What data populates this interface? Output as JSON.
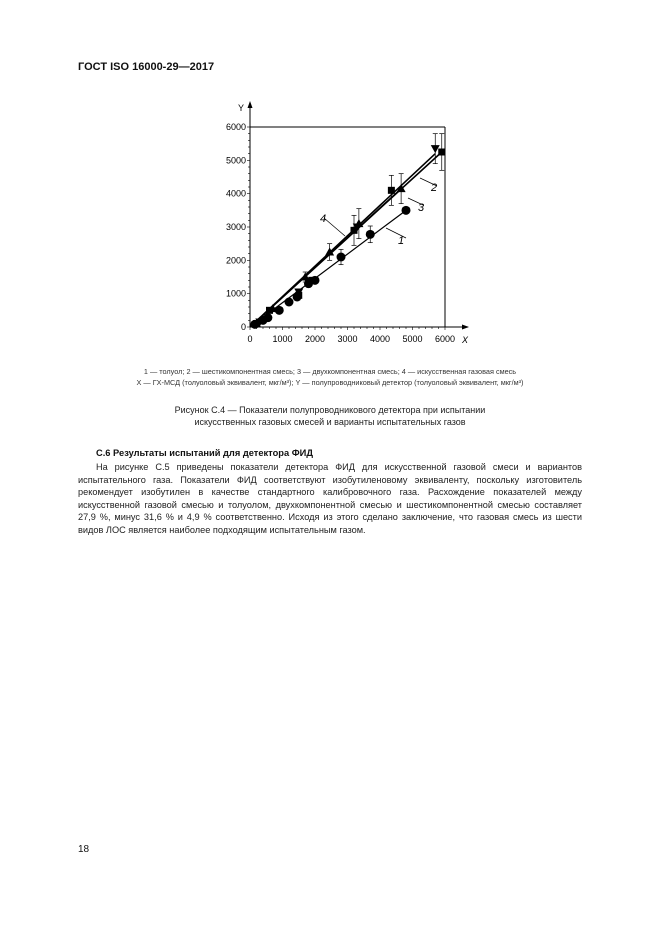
{
  "header": {
    "title": "ГОСТ ISO 16000-29—2017"
  },
  "chart_data": {
    "type": "scatter",
    "xlabel": "X",
    "ylabel": "Y",
    "xlim": [
      0,
      6000
    ],
    "ylim": [
      0,
      6000
    ],
    "xticks": [
      "0",
      "1000",
      "2000",
      "3000",
      "4000",
      "5000",
      "6000"
    ],
    "yticks": [
      "0",
      "1000",
      "2000",
      "3000",
      "4000",
      "5000",
      "6000"
    ],
    "grid": false,
    "series": [
      {
        "name": "1",
        "marker": "circle",
        "points": [
          [
            150,
            80
          ],
          [
            400,
            200
          ],
          [
            550,
            280
          ],
          [
            900,
            500
          ],
          [
            1200,
            750
          ],
          [
            1450,
            900
          ],
          [
            1800,
            1300
          ],
          [
            2000,
            1400
          ],
          [
            2800,
            2100
          ],
          [
            3700,
            2780
          ],
          [
            4800,
            3500
          ]
        ],
        "fit": [
          [
            0,
            0
          ],
          [
            4800,
            3500
          ]
        ],
        "errors": [
          [
            2800,
            230
          ],
          [
            3700,
            250
          ]
        ]
      },
      {
        "name": "2",
        "marker": "square",
        "points": [
          [
            200,
            100
          ],
          [
            600,
            500
          ],
          [
            1500,
            950
          ],
          [
            1900,
            1400
          ],
          [
            3200,
            2900
          ],
          [
            4350,
            4100
          ],
          [
            5900,
            5250
          ]
        ],
        "fit": [
          [
            0,
            0
          ],
          [
            5900,
            5250
          ]
        ],
        "errors": [
          [
            3200,
            450
          ],
          [
            4350,
            450
          ],
          [
            5900,
            550
          ]
        ]
      },
      {
        "name": "3",
        "marker": "triangle-down",
        "points": [
          [
            300,
            150
          ],
          [
            1500,
            1050
          ],
          [
            3300,
            3000
          ],
          [
            5700,
            5350
          ]
        ],
        "fit": [
          [
            0,
            0
          ],
          [
            5700,
            5200
          ]
        ],
        "errors": [
          [
            5700,
            450
          ]
        ]
      },
      {
        "name": "4",
        "marker": "triangle-up",
        "points": [
          [
            200,
            100
          ],
          [
            700,
            550
          ],
          [
            1700,
            1500
          ],
          [
            2450,
            2250
          ],
          [
            3350,
            3100
          ],
          [
            4650,
            4150
          ]
        ],
        "fit": [
          [
            0,
            0
          ],
          [
            4650,
            4150
          ]
        ],
        "errors": [
          [
            1700,
            150
          ],
          [
            2450,
            250
          ],
          [
            3350,
            450
          ],
          [
            4650,
            450
          ]
        ]
      }
    ]
  },
  "legend": {
    "line1": "1 — толуол; 2 — шестикомпонентная смесь; 3 — двухкомпонентная смесь; 4 — искусственная газовая смесь",
    "line2": "X — ГХ-МСД (толуоловый эквивалент, мкг/м³); Y — полупроводниковый детектор (толуоловый эквивалент, мкг/м³)"
  },
  "caption": {
    "line1": "Рисунок С.4 — Показатели полупроводникового детектора при испытании",
    "line2": "искусственных газовых смесей и варианты испытательных газов"
  },
  "section": {
    "title": "С.6 Результаты испытаний для детектора ФИД",
    "paragraph": "На рисунке С.5 приведены показатели детектора ФИД для искусственной газовой смеси и вариантов испытательного газа. Показатели ФИД соответствуют изобутиленовому эквиваленту, поскольку изготовитель рекомендует изобутилен в качестве стандартного калибровочного газа. Расхождение показателей между искусственной газовой смесью и толуолом, двухкомпонентной смесью и шестикомпонентной смесью составляет 27,9 %, минус 31,6 % и 4,9 % соответственно. Исходя из этого сделано заключение, что газовая смесь из шести видов ЛОС является наиболее подходящим испытательным газом."
  },
  "footer": {
    "page_number": "18"
  }
}
